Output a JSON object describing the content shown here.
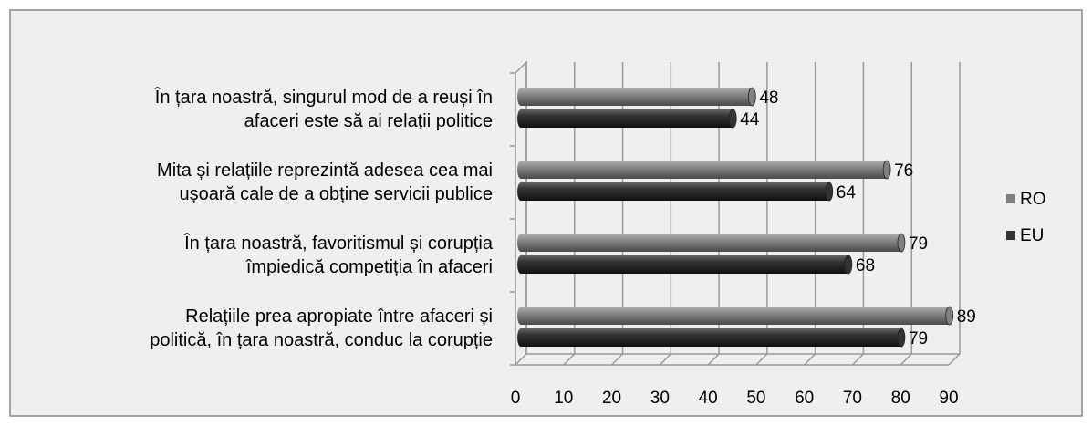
{
  "chart_data": {
    "type": "bar",
    "orientation": "horizontal",
    "categories": [
      "În țara noastră, singurul mod de a reuși în\nafaceri este să ai relații politice",
      "Mita și relațiile reprezintă adesea cea mai\nușoară cale de a obține servicii publice",
      "În țara noastră, favoritismul și corupția\nîmpiedică competiția în afaceri",
      "Relațiile prea apropiate între afaceri și\npolitică, în țara noastră, conduc la corupție"
    ],
    "series": [
      {
        "name": "RO",
        "color": "#808080",
        "values": [
          48,
          76,
          79,
          89
        ]
      },
      {
        "name": "EU",
        "color": "#333333",
        "values": [
          44,
          64,
          68,
          79
        ]
      }
    ],
    "xlim": [
      0,
      90
    ],
    "xticks": [
      0,
      10,
      20,
      30,
      40,
      50,
      60,
      70,
      80,
      90
    ],
    "grid": true,
    "legend": "right"
  }
}
